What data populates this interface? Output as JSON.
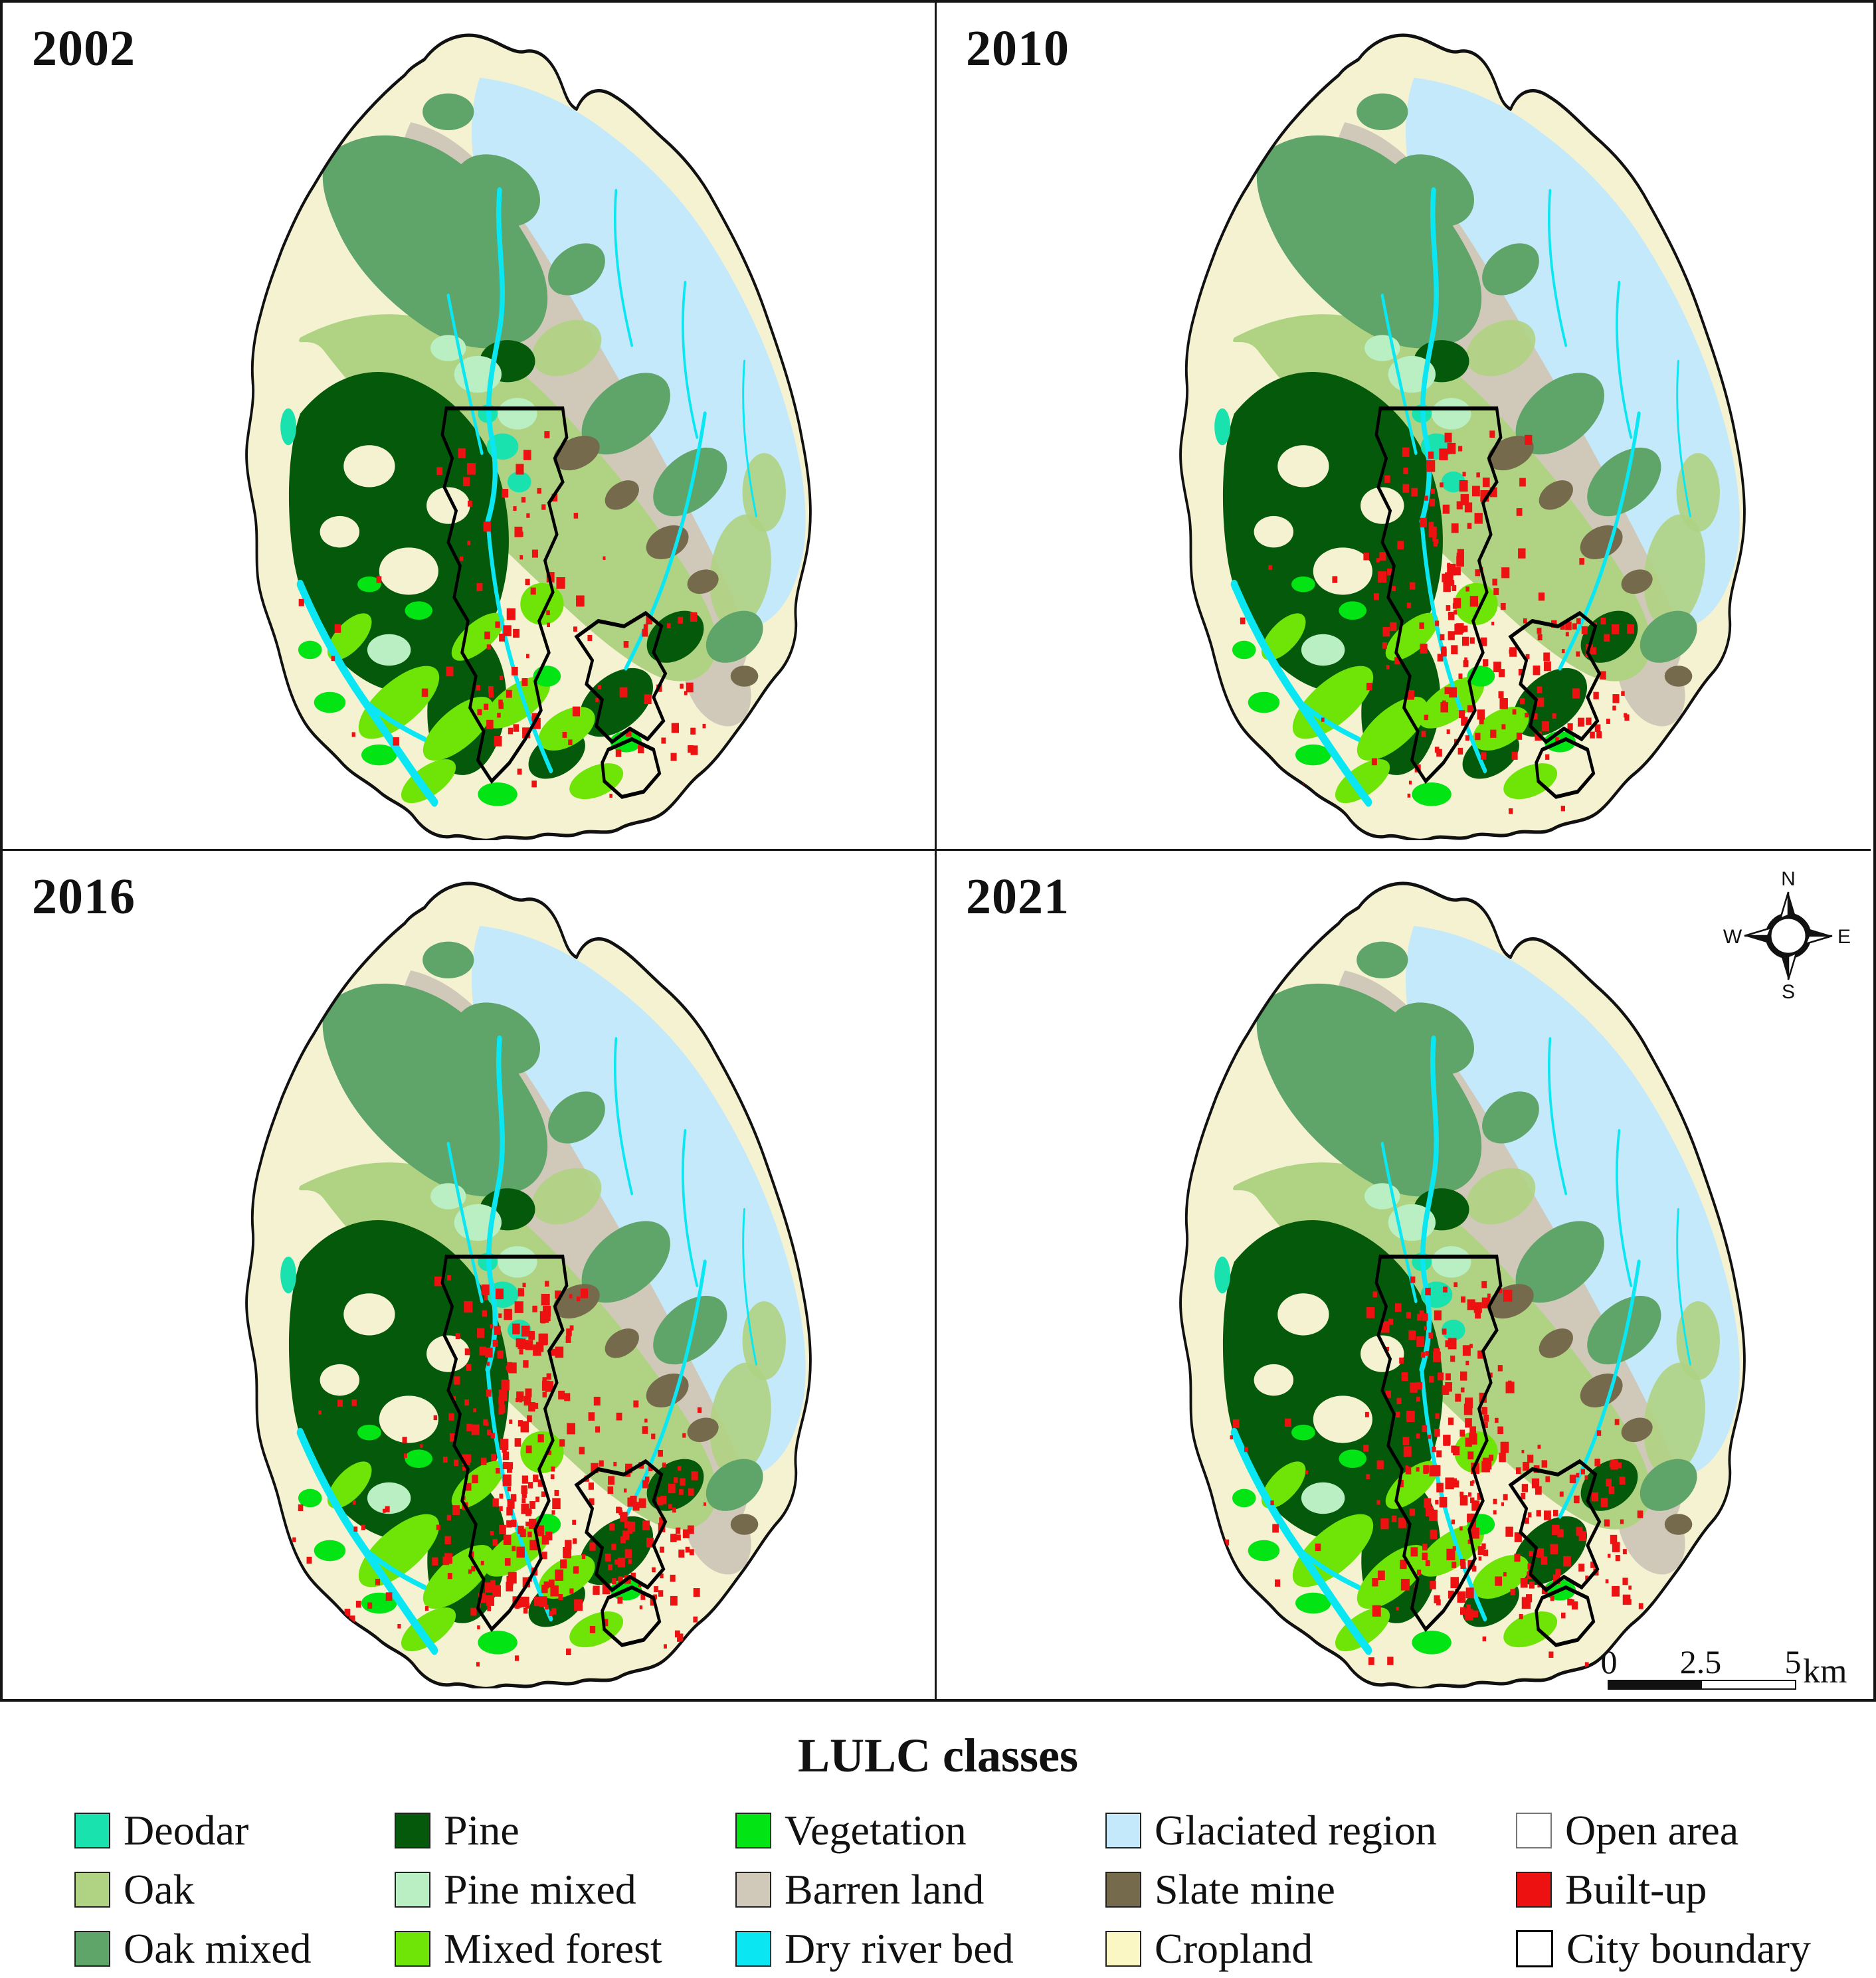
{
  "panels": [
    {
      "year": "2002"
    },
    {
      "year": "2010"
    },
    {
      "year": "2016"
    },
    {
      "year": "2021"
    }
  ],
  "compass": {
    "north": "N",
    "east": "E",
    "south": "S",
    "west": "W"
  },
  "scalebar": {
    "tick_start": "0",
    "tick_mid": "2.5",
    "tick_end": "5",
    "unit": "km"
  },
  "legend": {
    "title": "LULC classes",
    "items": [
      {
        "label": "Deodar",
        "slug": "deodar",
        "color": "#19E2AE",
        "border": "#222222"
      },
      {
        "label": "Oak",
        "slug": "oak",
        "color": "#AFD383",
        "border": "#222222"
      },
      {
        "label": "Oak mixed",
        "slug": "oak-mixed",
        "color": "#5FA468",
        "border": "#222222"
      },
      {
        "label": "Pine",
        "slug": "pine",
        "color": "#05590A",
        "border": "#222222"
      },
      {
        "label": "Pine mixed",
        "slug": "pine-mixed",
        "color": "#B9EFC3",
        "border": "#222222"
      },
      {
        "label": "Mixed forest",
        "slug": "mixed-forest",
        "color": "#6FE407",
        "border": "#222222"
      },
      {
        "label": "Vegetation",
        "slug": "vegetation",
        "color": "#02E414",
        "border": "#222222"
      },
      {
        "label": "Barren land",
        "slug": "barren-land",
        "color": "#D0C9BA",
        "border": "#222222"
      },
      {
        "label": "Dry river bed",
        "slug": "dry-river-bed",
        "color": "#0AE6F2",
        "border": "#222222"
      },
      {
        "label": "Glaciated region",
        "slug": "glaciated-region",
        "color": "#C4E9FA",
        "border": "#222222"
      },
      {
        "label": "Slate mine",
        "slug": "slate-mine",
        "color": "#766A4C",
        "border": "#222222"
      },
      {
        "label": "Cropland",
        "slug": "cropland",
        "color": "#FAF7C5",
        "border": "#222222"
      },
      {
        "label": "Open area",
        "slug": "open-area",
        "color": "#FFFFFF",
        "border": "#777777"
      },
      {
        "label": "Built-up",
        "slug": "built-up",
        "color": "#EE1111",
        "border": "#222222"
      },
      {
        "label": "City boundary",
        "slug": "city-boundary",
        "color": "#FFFFFF",
        "border": "#000000"
      }
    ]
  }
}
